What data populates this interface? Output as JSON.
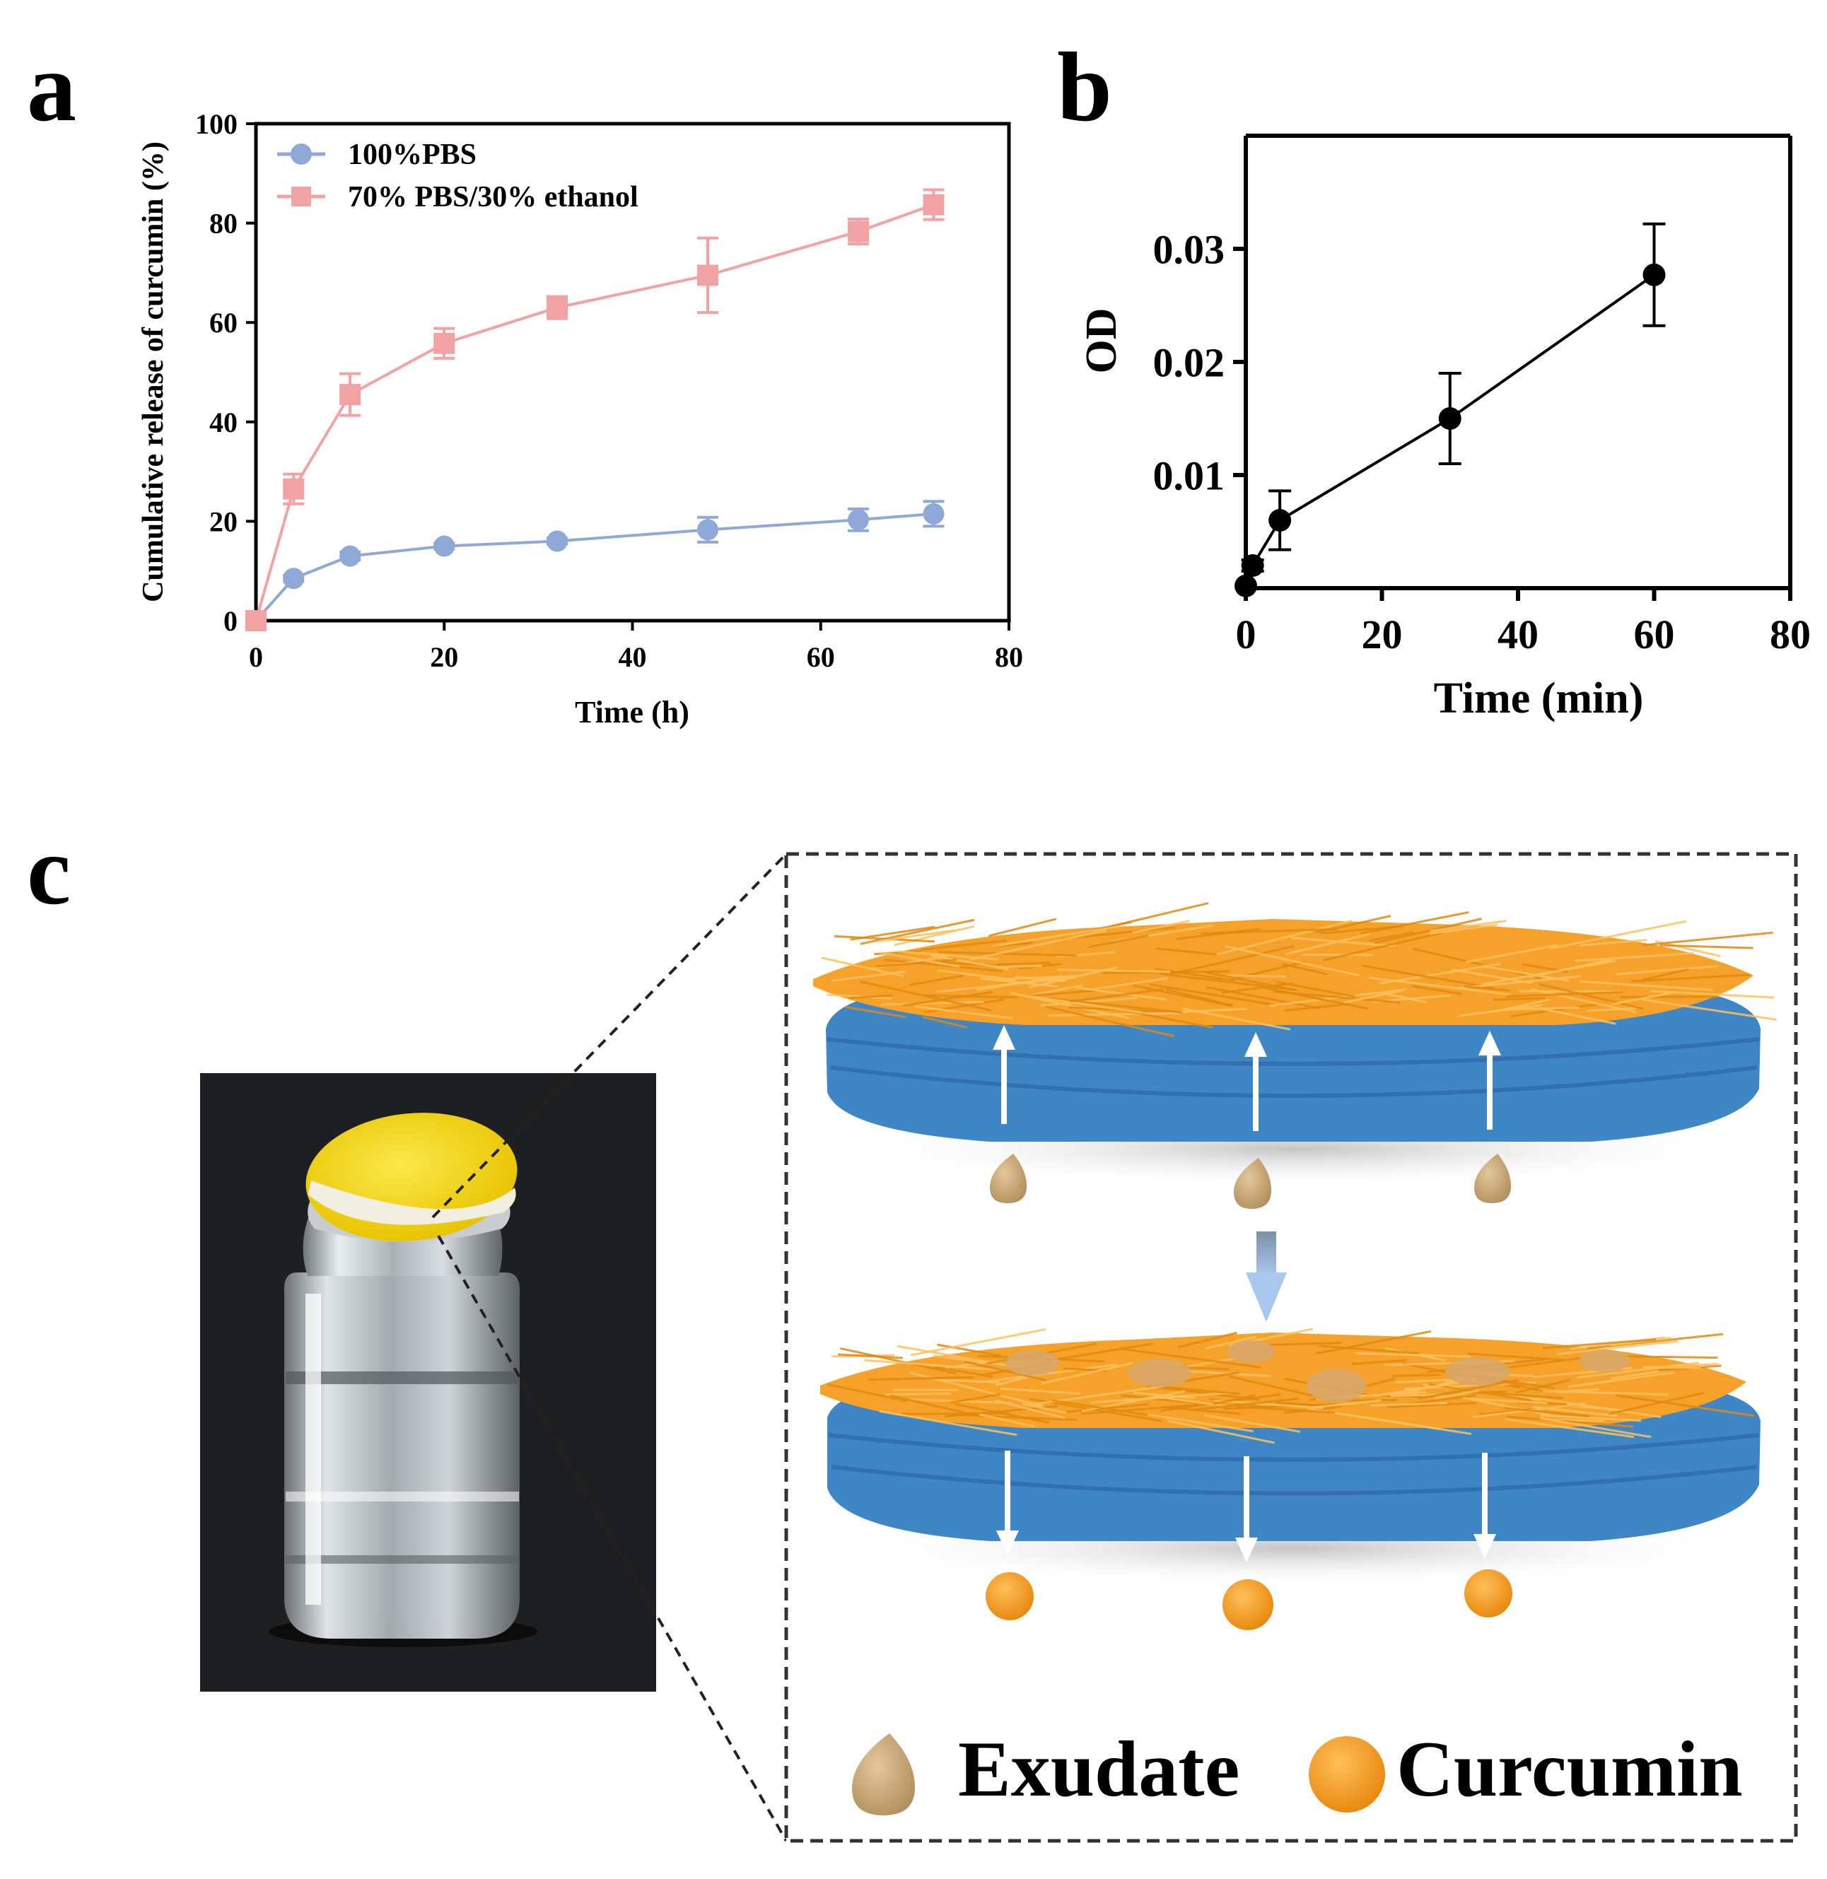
{
  "panels": {
    "a": "a",
    "b": "b",
    "c": "c"
  },
  "chart_data": [
    {
      "panel": "a",
      "type": "line",
      "title": "",
      "xlabel": "Time (h)",
      "ylabel": "Cumulative release of curcumin (%)",
      "xlim": [
        0,
        80
      ],
      "ylim": [
        0,
        100
      ],
      "xticks": [
        "0",
        "20",
        "40",
        "60",
        "80"
      ],
      "yticks": [
        "0",
        "20",
        "40",
        "60",
        "80",
        "100"
      ],
      "grid": false,
      "legend": "top-left",
      "series": [
        {
          "name": "100%PBS",
          "marker": "circle",
          "color": "#8ea9d8",
          "x": [
            0,
            4,
            10,
            20,
            32,
            48,
            64,
            72
          ],
          "y": [
            0,
            8.5,
            13,
            15,
            16,
            18.3,
            20.3,
            21.5
          ],
          "err": [
            0,
            0.6,
            0.8,
            0.6,
            0.6,
            2.5,
            2.2,
            2.5
          ]
        },
        {
          "name": "70% PBS/30% ethanol",
          "marker": "square",
          "color": "#f2a2a2",
          "x": [
            0,
            4,
            10,
            20,
            32,
            48,
            64,
            72
          ],
          "y": [
            0,
            26.5,
            45.5,
            55.8,
            63,
            69.5,
            78.3,
            83.7
          ],
          "err": [
            0,
            3,
            4.2,
            3,
            2.2,
            7.5,
            2.5,
            3
          ]
        }
      ]
    },
    {
      "panel": "b",
      "type": "line",
      "title": "",
      "xlabel": "Time (min)",
      "ylabel": "OD",
      "xlim": [
        0,
        80
      ],
      "ylim": [
        0,
        0.04
      ],
      "xticks": [
        "0",
        "20",
        "40",
        "60",
        "80"
      ],
      "yticks": [
        "0.01",
        "0.02",
        "0.03"
      ],
      "grid": false,
      "series": [
        {
          "marker": "circle",
          "color": "#000000",
          "x": [
            0,
            1,
            5,
            30,
            60
          ],
          "y": [
            0.0002,
            0.002,
            0.006,
            0.015,
            0.0277
          ],
          "err": [
            0,
            0.0005,
            0.0026,
            0.004,
            0.0045
          ]
        }
      ]
    }
  ],
  "illustration": {
    "legend": {
      "exudate": "Exudate",
      "curcumin": "Curcumin"
    },
    "colors": {
      "fiber_top": "#f5a12a",
      "fiber_bottom": "#3f86c6",
      "exudate": "#c9a878",
      "curcumin": "#f39a1e",
      "cap": "#f4d40a",
      "photo_bg": "#1e1f21"
    }
  }
}
